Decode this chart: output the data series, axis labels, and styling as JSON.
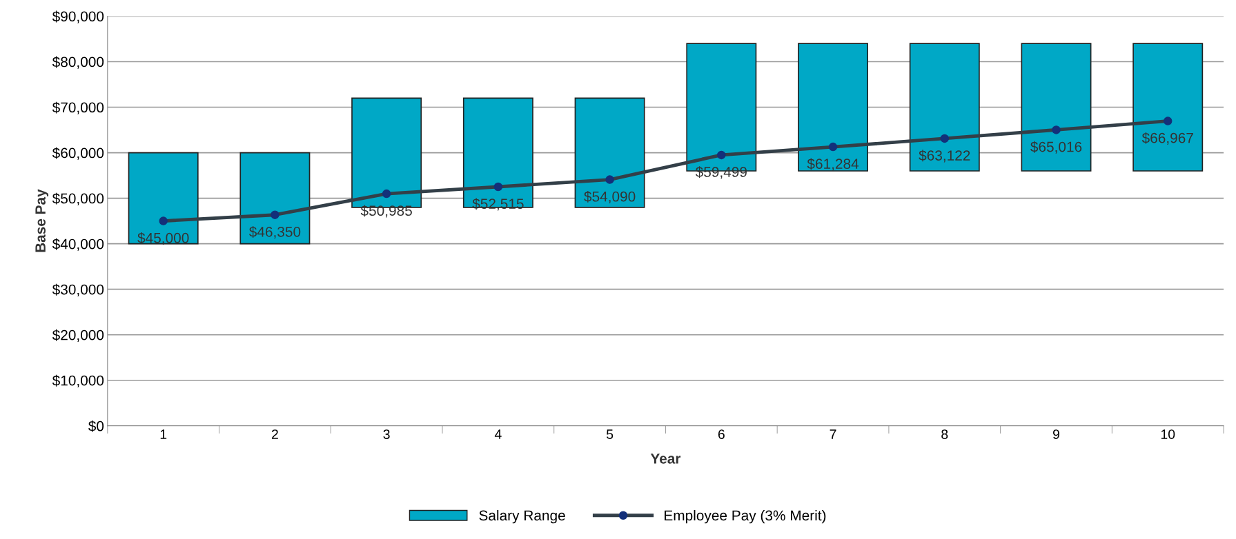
{
  "chart_data": {
    "type": "bar",
    "xlabel": "Year",
    "ylabel": "Base Pay",
    "categories": [
      "1",
      "2",
      "3",
      "4",
      "5",
      "6",
      "7",
      "8",
      "9",
      "10"
    ],
    "series": [
      {
        "name": "Salary Range",
        "color": "#00a8c6",
        "base": [
          40000,
          40000,
          48000,
          48000,
          48000,
          56000,
          56000,
          56000,
          56000,
          56000
        ],
        "values": [
          20000,
          20000,
          24000,
          24000,
          24000,
          28000,
          28000,
          28000,
          28000,
          28000
        ]
      },
      {
        "name": "Employee Pay (3% Merit)",
        "type": "line",
        "color": "#333f48",
        "marker": "circle",
        "values": [
          45000,
          46350,
          50985,
          52515,
          54090,
          59499,
          61284,
          63122,
          65016,
          66967
        ],
        "value_labels": [
          "$45,000",
          "$46,350",
          "$50,985",
          "$52,515",
          "$54,090",
          "$59,499",
          "$61,284",
          "$63,122",
          "$65,016",
          "$66,967"
        ]
      }
    ],
    "ylim": [
      0,
      90000
    ],
    "yticks": [
      {
        "value": 0,
        "label": "$0"
      },
      {
        "value": 10000,
        "label": "$10,000"
      },
      {
        "value": 20000,
        "label": "$20,000"
      },
      {
        "value": 30000,
        "label": "$30,000"
      },
      {
        "value": 40000,
        "label": "$40,000"
      },
      {
        "value": 50000,
        "label": "$50,000"
      },
      {
        "value": 60000,
        "label": "$60,000"
      },
      {
        "value": 70000,
        "label": "$70,000"
      },
      {
        "value": 80000,
        "label": "$80,000"
      },
      {
        "value": 90000,
        "label": "$90,000"
      }
    ],
    "grid": "y",
    "legend": "bottom"
  }
}
